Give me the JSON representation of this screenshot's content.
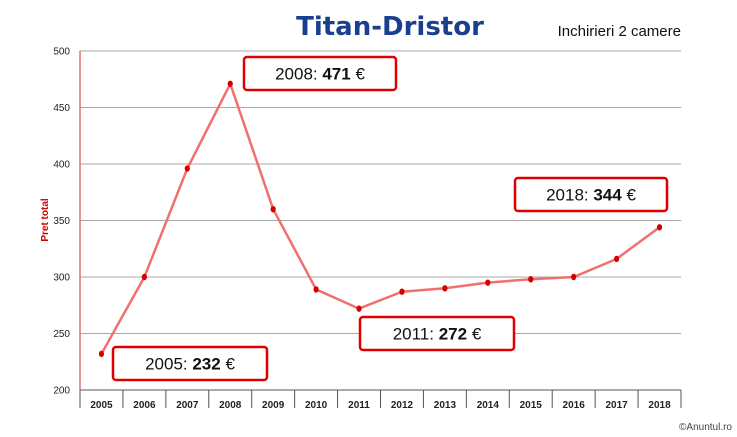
{
  "chart_data": {
    "type": "line",
    "title": "Titan-Dristor",
    "subtitle": "Inchirieri 2 camere",
    "ylabel": "Pret total",
    "xlabel": "",
    "ylim": [
      200,
      500
    ],
    "yticks": [
      200,
      250,
      300,
      350,
      400,
      450,
      500
    ],
    "x": [
      "2005",
      "2006",
      "2007",
      "2008",
      "2009",
      "2010",
      "2011",
      "2012",
      "2013",
      "2014",
      "2015",
      "2016",
      "2017",
      "2018"
    ],
    "series": [
      {
        "values": [
          232,
          300,
          396,
          471,
          360,
          289,
          272,
          287,
          290,
          295,
          298,
          300,
          316,
          344
        ]
      }
    ],
    "grid": true,
    "line_color": "#f07070",
    "marker_color": "#d40000",
    "annotations": [
      {
        "year": "2008",
        "value": "471",
        "unit": "€"
      },
      {
        "year": "2018",
        "value": "344",
        "unit": "€"
      },
      {
        "year": "2011",
        "value": "272",
        "unit": "€"
      },
      {
        "year": "2005",
        "value": "232",
        "unit": "€"
      }
    ]
  },
  "credit": "©Anuntul.ro"
}
